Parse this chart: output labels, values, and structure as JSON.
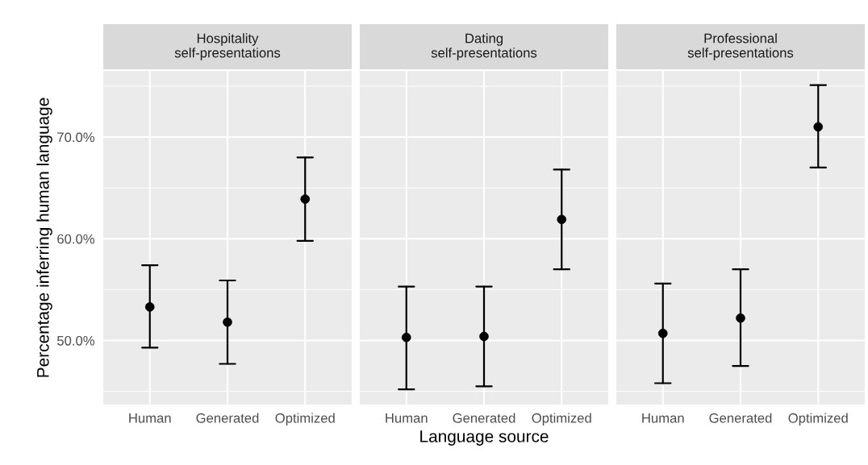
{
  "chart_data": [
    {
      "type": "scatter",
      "title": "Hospitality\nself-presentations",
      "ylabel": "Percentage inferring human language",
      "categories": [
        "Human",
        "Generated",
        "Optimized"
      ],
      "values": [
        53.3,
        51.8,
        63.9
      ],
      "errors": [
        [
          49.3,
          57.4
        ],
        [
          47.7,
          55.9
        ],
        [
          59.8,
          68.0
        ]
      ],
      "color": "#000000",
      "marker": "circle",
      "ylim": [
        43.7,
        76.5
      ],
      "yticks": [
        {
          "value": 50,
          "label": "50.0%"
        },
        {
          "value": 60,
          "label": "60.0%"
        },
        {
          "value": 70,
          "label": "70.0%"
        }
      ],
      "grid": true
    },
    {
      "type": "scatter",
      "title": "Dating\nself-presentations",
      "xlabel": "Language source",
      "categories": [
        "Human",
        "Generated",
        "Optimized"
      ],
      "values": [
        50.3,
        50.4,
        61.9
      ],
      "errors": [
        [
          45.2,
          55.3
        ],
        [
          45.5,
          55.3
        ],
        [
          57.0,
          66.8
        ]
      ],
      "color": "#000000",
      "marker": "circle",
      "ylim": [
        43.7,
        76.5
      ],
      "yticks": [
        {
          "value": 50,
          "label": null
        },
        {
          "value": 60,
          "label": null
        },
        {
          "value": 70,
          "label": null
        }
      ],
      "grid": true,
      "tick_labels": "x"
    },
    {
      "type": "scatter",
      "title": "Professional\nself-presentations",
      "categories": [
        "Human",
        "Generated",
        "Optimized"
      ],
      "values": [
        50.7,
        52.2,
        71.0
      ],
      "errors": [
        [
          45.8,
          55.6
        ],
        [
          47.5,
          57.0
        ],
        [
          67.0,
          75.1
        ]
      ],
      "color": "#000000",
      "marker": "circle",
      "ylim": [
        43.7,
        76.5
      ],
      "yticks": [
        {
          "value": 50,
          "label": null
        },
        {
          "value": 60,
          "label": null
        },
        {
          "value": 70,
          "label": null
        }
      ],
      "grid": true,
      "tick_labels": "x"
    }
  ]
}
